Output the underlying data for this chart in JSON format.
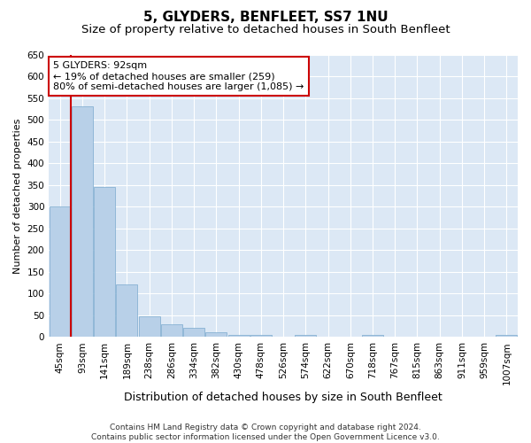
{
  "title": "5, GLYDERS, BENFLEET, SS7 1NU",
  "subtitle": "Size of property relative to detached houses in South Benfleet",
  "xlabel": "Distribution of detached houses by size in South Benfleet",
  "ylabel": "Number of detached properties",
  "footer_line1": "Contains HM Land Registry data © Crown copyright and database right 2024.",
  "footer_line2": "Contains public sector information licensed under the Open Government Licence v3.0.",
  "annotation_line1": "5 GLYDERS: 92sqm",
  "annotation_line2": "← 19% of detached houses are smaller (259)",
  "annotation_line3": "80% of semi-detached houses are larger (1,085) →",
  "bar_color": "#b8d0e8",
  "bar_edge_color": "#7aaace",
  "annotation_box_color": "#ffffff",
  "annotation_box_edge": "#cc0000",
  "marker_line_color": "#cc0000",
  "fig_background_color": "#ffffff",
  "plot_background_color": "#dce8f5",
  "bins": [
    "45sqm",
    "93sqm",
    "141sqm",
    "189sqm",
    "238sqm",
    "286sqm",
    "334sqm",
    "382sqm",
    "430sqm",
    "478sqm",
    "526sqm",
    "574sqm",
    "622sqm",
    "670sqm",
    "718sqm",
    "767sqm",
    "815sqm",
    "863sqm",
    "911sqm",
    "959sqm",
    "1007sqm"
  ],
  "values": [
    300,
    530,
    345,
    120,
    47,
    30,
    20,
    10,
    5,
    4,
    0,
    5,
    0,
    0,
    4,
    0,
    0,
    0,
    0,
    0,
    4
  ],
  "ylim": [
    0,
    650
  ],
  "yticks": [
    0,
    50,
    100,
    150,
    200,
    250,
    300,
    350,
    400,
    450,
    500,
    550,
    600,
    650
  ],
  "marker_bin_index": 1,
  "title_fontsize": 11,
  "subtitle_fontsize": 9.5,
  "xlabel_fontsize": 9,
  "ylabel_fontsize": 8,
  "tick_fontsize": 7.5,
  "annotation_fontsize": 8,
  "footer_fontsize": 6.5
}
